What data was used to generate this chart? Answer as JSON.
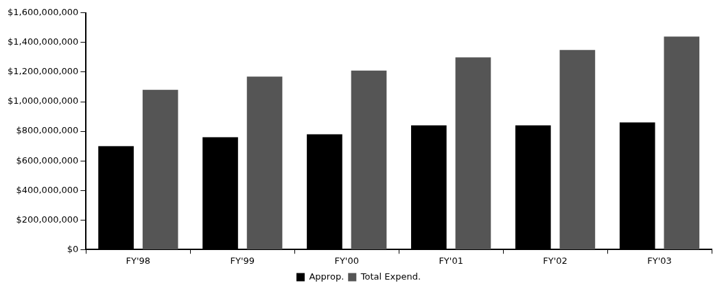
{
  "chart_data": {
    "type": "bar",
    "categories": [
      "FY'98",
      "FY'99",
      "FY'00",
      "FY'01",
      "FY'02",
      "FY'03"
    ],
    "series": [
      {
        "name": "Approp.",
        "color": "#000000",
        "values": [
          700000000,
          760000000,
          780000000,
          840000000,
          840000000,
          860000000
        ]
      },
      {
        "name": "Total Expend.",
        "color": "#555555",
        "values": [
          1080000000,
          1170000000,
          1210000000,
          1300000000,
          1350000000,
          1440000000
        ]
      }
    ],
    "ylim": [
      0,
      1600000000
    ],
    "yticks": [
      {
        "value": 0,
        "label": "$0"
      },
      {
        "value": 200000000,
        "label": "$200,000,000"
      },
      {
        "value": 400000000,
        "label": "$400,000,000"
      },
      {
        "value": 600000000,
        "label": "$600,000,000"
      },
      {
        "value": 800000000,
        "label": "$800,000,000"
      },
      {
        "value": 1000000000,
        "label": "$1,000,000,000"
      },
      {
        "value": 1200000000,
        "label": "$1,200,000,000"
      },
      {
        "value": 1400000000,
        "label": "$1,400,000,000"
      },
      {
        "value": 1600000000,
        "label": "$1,600,000,000"
      }
    ],
    "grid": false,
    "legend": "bottom"
  }
}
